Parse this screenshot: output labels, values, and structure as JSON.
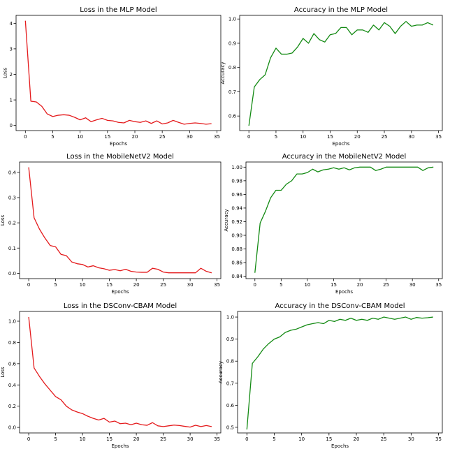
{
  "chart_data": [
    {
      "type": "line",
      "title": "Loss in the MLP Model",
      "xlabel": "Epochs",
      "ylabel": "Loss",
      "xlim": [
        -1.7,
        35.7
      ],
      "ylim": [
        -0.2,
        4.31
      ],
      "xticks": [
        0,
        5,
        10,
        15,
        20,
        25,
        30,
        35
      ],
      "yticks": [
        0,
        1,
        2,
        3,
        4
      ],
      "ytick_labels": [
        "0",
        "1",
        "2",
        "3",
        "4"
      ],
      "color": "#e41a1c",
      "series": [
        {
          "x": [
            0,
            1,
            2,
            3,
            4,
            5,
            6,
            7,
            8,
            9,
            10,
            11,
            12,
            13,
            14,
            15,
            16,
            17,
            18,
            19,
            20,
            21,
            22,
            23,
            24,
            25,
            26,
            27,
            28,
            29,
            30,
            31,
            32,
            33,
            34
          ],
          "values": [
            4.1,
            0.95,
            0.92,
            0.75,
            0.45,
            0.35,
            0.4,
            0.42,
            0.4,
            0.32,
            0.22,
            0.3,
            0.15,
            0.22,
            0.28,
            0.2,
            0.18,
            0.12,
            0.1,
            0.2,
            0.15,
            0.12,
            0.18,
            0.08,
            0.18,
            0.06,
            0.1,
            0.2,
            0.12,
            0.05,
            0.08,
            0.1,
            0.08,
            0.05,
            0.07
          ]
        }
      ]
    },
    {
      "type": "line",
      "title": "Accuracy in the MLP Model",
      "xlabel": "Epochs",
      "ylabel": "Accuracy",
      "xlim": [
        -1.7,
        35.7
      ],
      "ylim": [
        0.54,
        1.015
      ],
      "xticks": [
        0,
        5,
        10,
        15,
        20,
        25,
        30,
        35
      ],
      "yticks": [
        0.6,
        0.7,
        0.8,
        0.9,
        1.0
      ],
      "ytick_labels": [
        "0.6",
        "0.7",
        "0.8",
        "0.9",
        "1.0"
      ],
      "color": "#138a13",
      "series": [
        {
          "x": [
            0,
            1,
            2,
            3,
            4,
            5,
            6,
            7,
            8,
            9,
            10,
            11,
            12,
            13,
            14,
            15,
            16,
            17,
            18,
            19,
            20,
            21,
            22,
            23,
            24,
            25,
            26,
            27,
            28,
            29,
            30,
            31,
            32,
            33,
            34
          ],
          "values": [
            0.56,
            0.72,
            0.75,
            0.77,
            0.84,
            0.88,
            0.855,
            0.855,
            0.86,
            0.885,
            0.92,
            0.9,
            0.94,
            0.915,
            0.905,
            0.935,
            0.94,
            0.965,
            0.965,
            0.935,
            0.955,
            0.955,
            0.945,
            0.975,
            0.955,
            0.985,
            0.97,
            0.94,
            0.97,
            0.99,
            0.97,
            0.975,
            0.975,
            0.985,
            0.975
          ]
        }
      ]
    },
    {
      "type": "line",
      "title": "Loss in the MobileNetV2 Model",
      "xlabel": "Epochs",
      "ylabel": "Loss",
      "xlim": [
        -1.7,
        35.7
      ],
      "ylim": [
        -0.021,
        0.441
      ],
      "xticks": [
        0,
        5,
        10,
        15,
        20,
        25,
        30,
        35
      ],
      "yticks": [
        0.0,
        0.1,
        0.2,
        0.3,
        0.4
      ],
      "ytick_labels": [
        "0.0",
        "0.1",
        "0.2",
        "0.3",
        "0.4"
      ],
      "color": "#e41a1c",
      "series": [
        {
          "x": [
            0,
            1,
            2,
            3,
            4,
            5,
            6,
            7,
            8,
            9,
            10,
            11,
            12,
            13,
            14,
            15,
            16,
            17,
            18,
            19,
            20,
            21,
            22,
            23,
            24,
            25,
            26,
            27,
            28,
            29,
            30,
            31,
            32,
            33,
            34
          ],
          "values": [
            0.42,
            0.22,
            0.175,
            0.14,
            0.11,
            0.105,
            0.075,
            0.07,
            0.045,
            0.038,
            0.035,
            0.025,
            0.03,
            0.022,
            0.018,
            0.012,
            0.015,
            0.01,
            0.016,
            0.008,
            0.005,
            0.004,
            0.004,
            0.02,
            0.016,
            0.005,
            0.002,
            0.002,
            0.002,
            0.002,
            0.002,
            0.002,
            0.02,
            0.008,
            0.002
          ]
        }
      ]
    },
    {
      "type": "line",
      "title": "Accuracy in the MobileNetV2 Model",
      "xlabel": "Epochs",
      "ylabel": "Accuracy",
      "xlim": [
        -1.7,
        35.7
      ],
      "ylim": [
        0.8365,
        1.0075
      ],
      "xticks": [
        0,
        5,
        10,
        15,
        20,
        25,
        30,
        35
      ],
      "yticks": [
        0.84,
        0.86,
        0.88,
        0.9,
        0.92,
        0.94,
        0.96,
        0.98,
        1.0
      ],
      "ytick_labels": [
        "0.84",
        "0.86",
        "0.88",
        "0.90",
        "0.92",
        "0.94",
        "0.96",
        "0.98",
        "1.00"
      ],
      "color": "#138a13",
      "series": [
        {
          "x": [
            0,
            1,
            2,
            3,
            4,
            5,
            6,
            7,
            8,
            9,
            10,
            11,
            12,
            13,
            14,
            15,
            16,
            17,
            18,
            19,
            20,
            21,
            22,
            23,
            24,
            25,
            26,
            27,
            28,
            29,
            30,
            31,
            32,
            33,
            34
          ],
          "values": [
            0.845,
            0.918,
            0.935,
            0.955,
            0.966,
            0.966,
            0.975,
            0.98,
            0.99,
            0.99,
            0.992,
            0.997,
            0.993,
            0.996,
            0.997,
            0.999,
            0.997,
            0.999,
            0.996,
            0.999,
            1.0,
            1.0,
            1.0,
            0.995,
            0.997,
            1.0,
            1.0,
            1.0,
            1.0,
            1.0,
            1.0,
            1.0,
            0.995,
            0.999,
            1.0
          ]
        }
      ]
    },
    {
      "type": "line",
      "title": "Loss in the DSConv-CBAM Model",
      "xlabel": "Epochs",
      "ylabel": "Loss",
      "xlim": [
        -1.7,
        35.7
      ],
      "ylim": [
        -0.052,
        1.092
      ],
      "xticks": [
        0,
        5,
        10,
        15,
        20,
        25,
        30,
        35
      ],
      "yticks": [
        0.0,
        0.2,
        0.4,
        0.6,
        0.8,
        1.0
      ],
      "ytick_labels": [
        "0.0",
        "0.2",
        "0.4",
        "0.6",
        "0.8",
        "1.0"
      ],
      "color": "#e41a1c",
      "series": [
        {
          "x": [
            0,
            1,
            2,
            3,
            4,
            5,
            6,
            7,
            8,
            9,
            10,
            11,
            12,
            13,
            14,
            15,
            16,
            17,
            18,
            19,
            20,
            21,
            22,
            23,
            24,
            25,
            26,
            27,
            28,
            29,
            30,
            31,
            32,
            33,
            34
          ],
          "values": [
            1.04,
            0.56,
            0.48,
            0.41,
            0.35,
            0.29,
            0.26,
            0.2,
            0.165,
            0.145,
            0.13,
            0.105,
            0.085,
            0.07,
            0.085,
            0.05,
            0.06,
            0.035,
            0.04,
            0.025,
            0.04,
            0.025,
            0.02,
            0.045,
            0.015,
            0.008,
            0.015,
            0.022,
            0.018,
            0.01,
            0.003,
            0.02,
            0.008,
            0.018,
            0.008
          ]
        }
      ]
    },
    {
      "type": "line",
      "title": "Accuracy in the DSConv-CBAM Model",
      "xlabel": "Epochs",
      "ylabel": "Accuracy",
      "xlim": [
        -1.7,
        35.7
      ],
      "ylim": [
        0.4745,
        1.0255
      ],
      "xticks": [
        0,
        5,
        10,
        15,
        20,
        25,
        30,
        35
      ],
      "yticks": [
        0.5,
        0.6,
        0.7,
        0.8,
        0.9,
        1.0
      ],
      "ytick_labels": [
        "0.5",
        "0.6",
        "0.7",
        "0.8",
        "0.9",
        "1.0"
      ],
      "color": "#138a13",
      "series": [
        {
          "x": [
            0,
            1,
            2,
            3,
            4,
            5,
            6,
            7,
            8,
            9,
            10,
            11,
            12,
            13,
            14,
            15,
            16,
            17,
            18,
            19,
            20,
            21,
            22,
            23,
            24,
            25,
            26,
            27,
            28,
            29,
            30,
            31,
            32,
            33,
            34
          ],
          "values": [
            0.49,
            0.79,
            0.82,
            0.855,
            0.88,
            0.9,
            0.91,
            0.93,
            0.94,
            0.945,
            0.955,
            0.965,
            0.97,
            0.975,
            0.97,
            0.985,
            0.98,
            0.99,
            0.985,
            0.995,
            0.985,
            0.99,
            0.985,
            0.995,
            0.99,
            1.0,
            0.995,
            0.99,
            0.995,
            1.0,
            0.99,
            0.998,
            0.995,
            0.997,
            1.0
          ]
        }
      ]
    }
  ]
}
